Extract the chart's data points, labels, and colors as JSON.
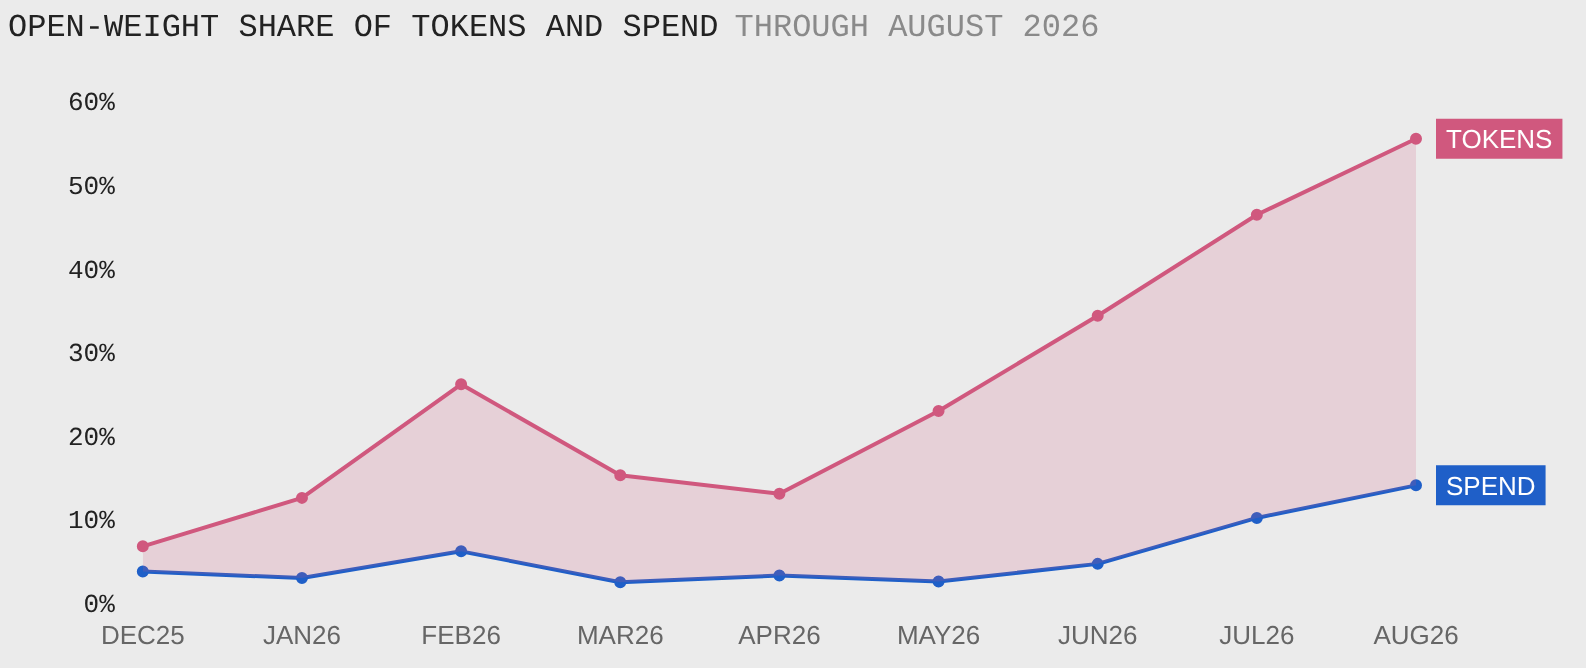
{
  "chart_data": {
    "type": "line",
    "title": "OPEN-WEIGHT SHARE OF TOKENS AND SPEND",
    "subtitle": "THROUGH AUGUST 2026",
    "categories": [
      "DEC25",
      "JAN26",
      "FEB26",
      "MAR26",
      "APR26",
      "MAY26",
      "JUN26",
      "JUL26",
      "AUG26"
    ],
    "series": [
      {
        "name": "TOKENS",
        "type": "area",
        "color": "#d0587e",
        "values": [
          7,
          12.8,
          26.4,
          15.5,
          13.3,
          23.2,
          34.6,
          46.7,
          55.8
        ]
      },
      {
        "name": "SPEND",
        "type": "line",
        "color": "#1f5fc8",
        "values": [
          4,
          3.2,
          6.4,
          2.7,
          3.5,
          2.8,
          4.9,
          10.4,
          14.3
        ]
      }
    ],
    "ylim": [
      0,
      60
    ],
    "yticks": [
      {
        "value": 0,
        "label": "0%"
      },
      {
        "value": 10,
        "label": "10%"
      },
      {
        "value": 20,
        "label": "20%"
      },
      {
        "value": 30,
        "label": "30%"
      },
      {
        "value": 40,
        "label": "40%"
      },
      {
        "value": 50,
        "label": "50%"
      },
      {
        "value": 60,
        "label": "60%"
      }
    ],
    "grid": false,
    "marker": "circle",
    "line_style": "solid"
  }
}
